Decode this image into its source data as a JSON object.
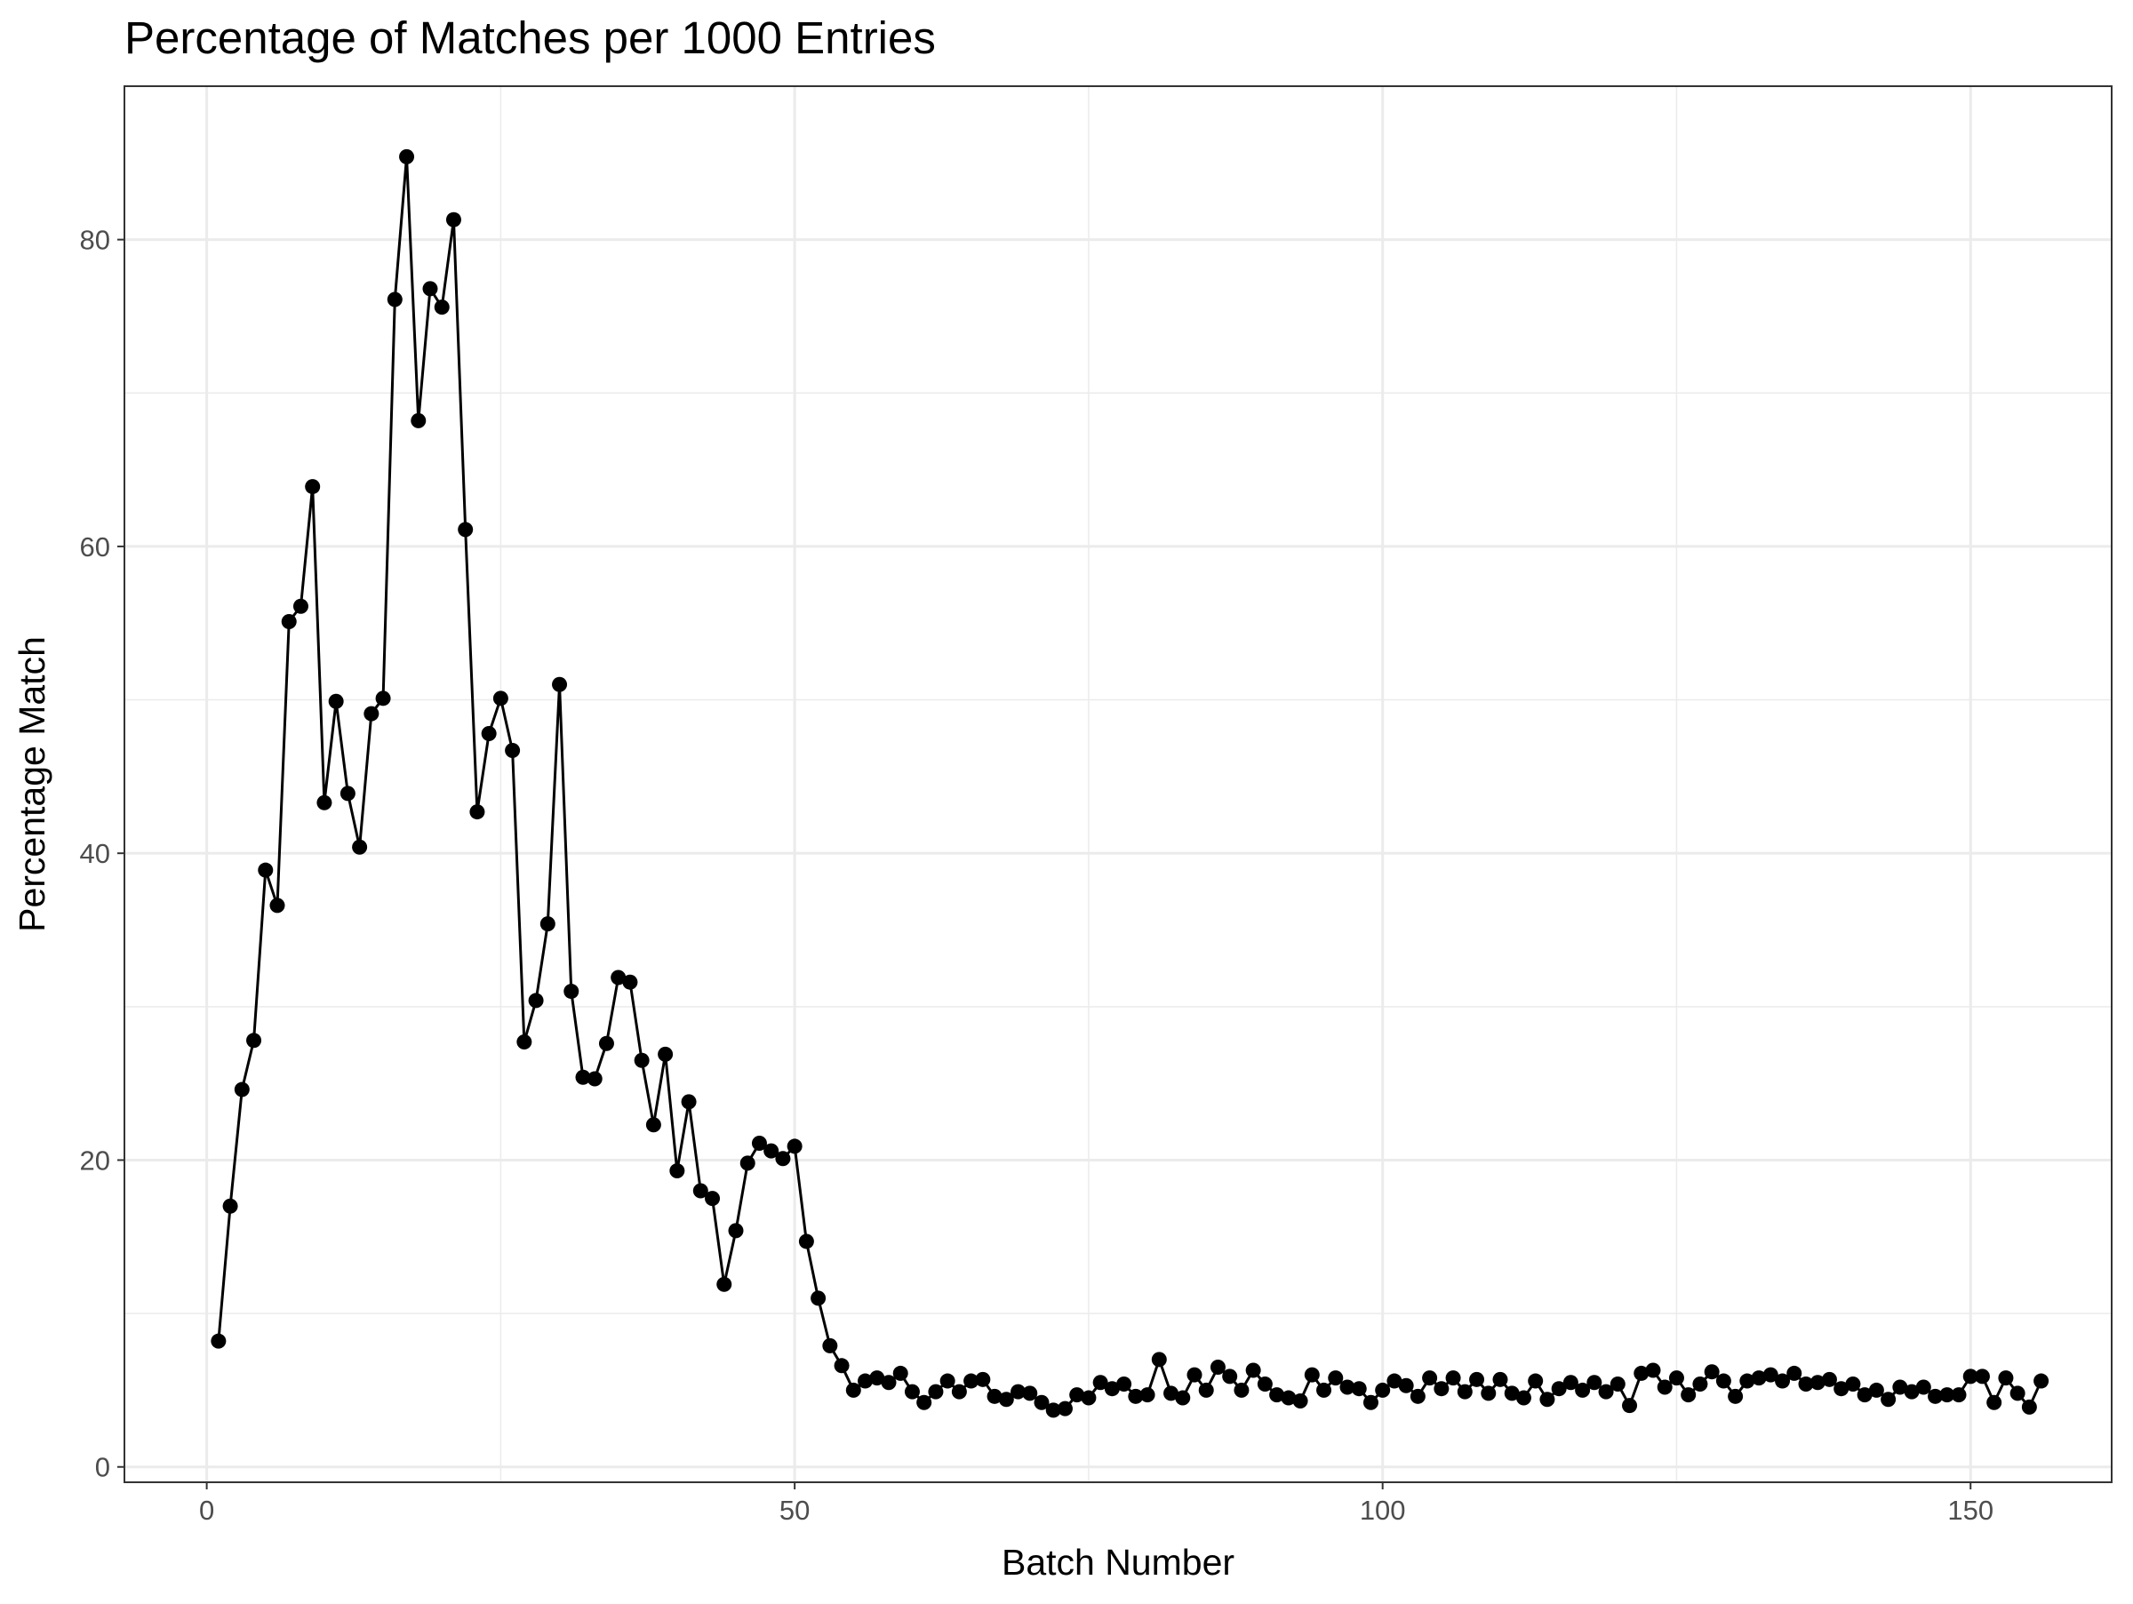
{
  "chart_data": {
    "type": "line",
    "title": "Percentage of Matches per 1000 Entries",
    "xlabel": "Batch Number",
    "ylabel": "Percentage Match",
    "xlim": [
      -7,
      162
    ],
    "ylim": [
      -1,
      90
    ],
    "x_ticks": [
      0,
      50,
      100,
      150
    ],
    "y_ticks": [
      0,
      20,
      40,
      60,
      80
    ],
    "x_tick_labels": [
      "0",
      "50",
      "100",
      "150"
    ],
    "y_tick_labels": [
      "0",
      "20",
      "40",
      "60",
      "80"
    ],
    "grid": true,
    "legend": "none",
    "color": "#000000",
    "series": [
      {
        "x": [
          1,
          2,
          3,
          4,
          5,
          6,
          7,
          8,
          9,
          10,
          11,
          12,
          13,
          14,
          15,
          16,
          17,
          18,
          19,
          20,
          21,
          22,
          23,
          24,
          25,
          26,
          27,
          28,
          29,
          30,
          31,
          32,
          33,
          34,
          35,
          36,
          37,
          38,
          39,
          40,
          41,
          42,
          43,
          44,
          45,
          46,
          47,
          48,
          49,
          50,
          51,
          52,
          53,
          54,
          55,
          56,
          57,
          58,
          59,
          60,
          61,
          62,
          63,
          64,
          65,
          66,
          67,
          68,
          69,
          70,
          71,
          72,
          73,
          74,
          75,
          76,
          77,
          78,
          79,
          80,
          81,
          82,
          83,
          84,
          85,
          86,
          87,
          88,
          89,
          90,
          91,
          92,
          93,
          94,
          95,
          96,
          97,
          98,
          99,
          100,
          101,
          102,
          103,
          104,
          105,
          106,
          107,
          108,
          109,
          110,
          111,
          112,
          113,
          114,
          115,
          116,
          117,
          118,
          119,
          120,
          121,
          122,
          123,
          124,
          125,
          126,
          127,
          128,
          129,
          130,
          131,
          132,
          133,
          134,
          135,
          136,
          137,
          138,
          139,
          140,
          141,
          142,
          143,
          144,
          145,
          146,
          147,
          148,
          149,
          150,
          151,
          152,
          153,
          154,
          155,
          156
        ],
        "y": [
          8.2,
          17.0,
          24.6,
          27.8,
          38.9,
          36.6,
          55.1,
          56.1,
          63.9,
          43.3,
          49.9,
          43.9,
          40.4,
          49.1,
          50.1,
          76.1,
          85.4,
          68.2,
          76.8,
          75.6,
          81.3,
          61.1,
          42.7,
          47.8,
          50.1,
          46.7,
          27.7,
          30.4,
          35.4,
          51.0,
          31.0,
          25.4,
          25.3,
          27.6,
          31.9,
          31.6,
          26.5,
          22.3,
          26.9,
          19.3,
          23.8,
          18.0,
          17.5,
          11.9,
          15.4,
          19.8,
          21.1,
          20.6,
          20.1,
          20.9,
          14.7,
          11.0,
          7.9,
          6.6,
          5.0,
          5.6,
          5.8,
          5.5,
          6.1,
          4.9,
          4.2,
          4.9,
          5.6,
          4.9,
          5.6,
          5.7,
          4.6,
          4.4,
          4.9,
          4.8,
          4.2,
          3.7,
          3.8,
          4.7,
          4.5,
          5.5,
          5.1,
          5.4,
          4.6,
          4.7,
          7.0,
          4.8,
          4.5,
          6.0,
          5.0,
          6.5,
          5.9,
          5.0,
          6.3,
          5.4,
          4.7,
          4.5,
          4.3,
          6.0,
          5.0,
          5.8,
          5.2,
          5.1,
          4.2,
          5.0,
          5.6,
          5.3,
          4.6,
          5.8,
          5.1,
          5.8,
          4.9,
          5.7,
          4.8,
          5.7,
          4.8,
          4.5,
          5.6,
          4.4,
          5.1,
          5.5,
          5.0,
          5.5,
          4.9,
          5.4,
          4.0,
          6.1,
          6.3,
          5.2,
          5.8,
          4.7,
          5.4,
          6.2,
          5.6,
          4.6,
          5.6,
          5.8,
          6.0,
          5.6,
          6.1,
          5.4,
          5.5,
          5.7,
          5.1,
          5.4,
          4.7,
          5.0,
          4.4,
          5.2,
          4.9,
          5.2,
          4.6,
          4.7,
          4.7,
          5.9,
          5.9,
          4.2,
          5.8,
          4.8,
          3.9,
          5.6
        ]
      }
    ]
  }
}
